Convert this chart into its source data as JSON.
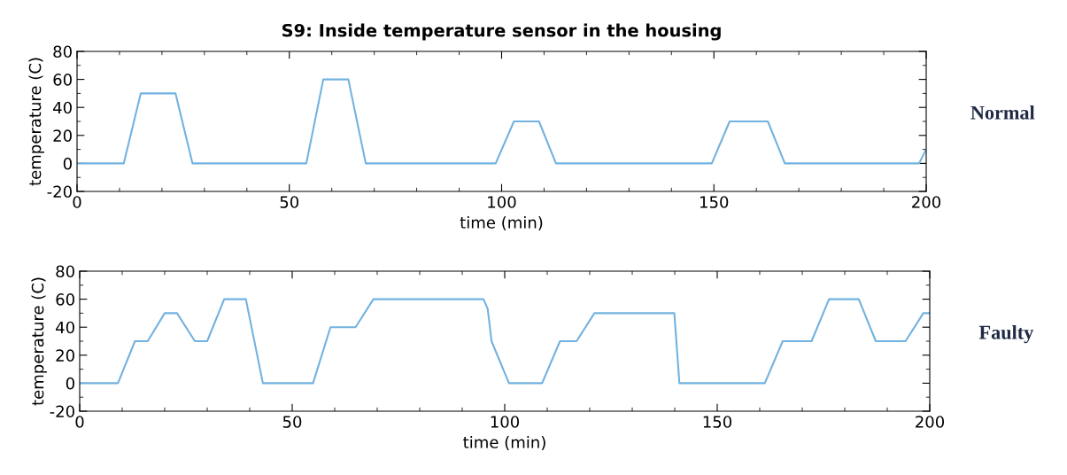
{
  "chart_data": [
    {
      "type": "line",
      "title": "S9: Inside temperature sensor in the housing",
      "xlabel": "time (min)",
      "ylabel": "temperature (C)",
      "annotations": [
        "Normal"
      ],
      "series": [
        {
          "color": "#72b2e0",
          "x": [
            0,
            11,
            15,
            23.2,
            27.2,
            54,
            58,
            63.9,
            68,
            98.6,
            102.9,
            108.8,
            112.8,
            149.5,
            153.7,
            162.7,
            166.7,
            198.3,
            200
          ],
          "values": [
            0,
            0,
            50,
            50,
            0,
            0,
            60,
            60,
            0,
            0,
            30,
            30,
            0,
            0,
            30,
            30,
            0,
            0,
            10
          ]
        }
      ],
      "xlim": [
        0,
        200
      ],
      "xticks": [
        0,
        50,
        100,
        150,
        200
      ],
      "ylim": [
        -20,
        80
      ],
      "yticks": [
        -20,
        0,
        20,
        40,
        60,
        80
      ],
      "grid": false,
      "legend": false,
      "line_style": "solid",
      "marker": "none"
    },
    {
      "type": "line",
      "xlabel": "time (min)",
      "ylabel": "temperature (C)",
      "annotations": [
        "Faulty"
      ],
      "series": [
        {
          "color": "#72b2e0",
          "x": [
            0,
            9,
            13,
            16,
            20,
            22.9,
            27.1,
            30,
            34,
            39.1,
            43.1,
            54.9,
            59,
            64.9,
            69.1,
            95,
            96,
            96.9,
            101,
            108.8,
            113,
            116.9,
            121.1,
            139.9,
            141.1,
            161.2,
            165.4,
            172.2,
            176.3,
            183.3,
            187.3,
            194.3,
            198.5,
            200
          ],
          "values": [
            0,
            0,
            30,
            30,
            50,
            50,
            30,
            30,
            60,
            60,
            0,
            0,
            40,
            40,
            60,
            60,
            53,
            30,
            0,
            0,
            30,
            30,
            50,
            50,
            0,
            0,
            30,
            30,
            60,
            60,
            30,
            30,
            50,
            50
          ]
        }
      ],
      "xlim": [
        0,
        200
      ],
      "xticks": [
        0,
        50,
        100,
        150,
        200
      ],
      "ylim": [
        -20,
        80
      ],
      "yticks": [
        -20,
        0,
        20,
        40,
        60,
        80
      ],
      "grid": false,
      "legend": false,
      "line_style": "solid",
      "marker": "none"
    }
  ]
}
